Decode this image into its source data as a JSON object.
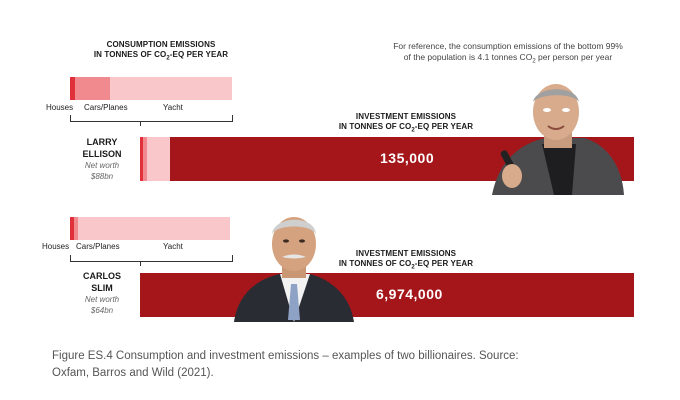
{
  "consumption_header": {
    "line1": "CONSUMPTION EMISSIONS",
    "line2_pre": "IN TONNES OF CO",
    "line2_sub": "2",
    "line2_post": "-EQ PER YEAR"
  },
  "reference_note": {
    "line1": "For reference, the consumption emissions of the bottom 99%",
    "line2_pre": "of the population is 4.1 tonnes CO",
    "line2_sub": "2",
    "line2_post": " per person per year"
  },
  "investment_header": {
    "line1": "INVESTMENT EMISSIONS",
    "line2_pre": "IN TONNES OF CO",
    "line2_sub": "2",
    "line2_post": "-EQ PER YEAR"
  },
  "segment_labels": {
    "houses": "Houses",
    "cars": "Cars/Planes",
    "yacht": "Yacht"
  },
  "billionaires": [
    {
      "name_line1": "LARRY",
      "name_line2": "ELLISON",
      "worth_line1": "Net worth",
      "worth_line2": "$88bn",
      "investment_label": "135,000"
    },
    {
      "name_line1": "CARLOS",
      "name_line2": "SLIM",
      "worth_line1": "Net worth",
      "worth_line2": "$64bn",
      "investment_label": "6,974,000"
    }
  ],
  "caption": {
    "line1": "Figure ES.4 Consumption and investment emissions – examples of two billionaires. Source:",
    "line2": "Oxfam, Barros and Wild (2021)."
  },
  "colors": {
    "houses": "#e0303a",
    "cars": "#f08a8e",
    "yacht": "#f9c7c9",
    "investment": "#a4161a"
  },
  "chart_data": [
    {
      "type": "bar",
      "orientation": "horizontal",
      "stacked": true,
      "categories": [
        "LARRY ELLISON",
        "CARLOS SLIM"
      ],
      "series": [
        {
          "name": "Houses",
          "values": [
            800,
            600
          ]
        },
        {
          "name": "Cars/Planes",
          "values": [
            5000,
            700
          ]
        },
        {
          "name": "Yacht",
          "values": [
            19800,
            24700
          ]
        }
      ],
      "xlabel": "CONSUMPTION EMISSIONS IN TONNES OF CO2-EQ PER YEAR",
      "legend": "none"
    },
    {
      "type": "bar",
      "orientation": "horizontal",
      "categories": [
        "LARRY ELLISON",
        "CARLOS SLIM"
      ],
      "values": [
        135000,
        6974000
      ],
      "labels": [
        "135,000",
        "6,974,000"
      ],
      "xlabel": "INVESTMENT EMISSIONS IN TONNES OF CO2-EQ PER YEAR",
      "legend": "none"
    }
  ]
}
